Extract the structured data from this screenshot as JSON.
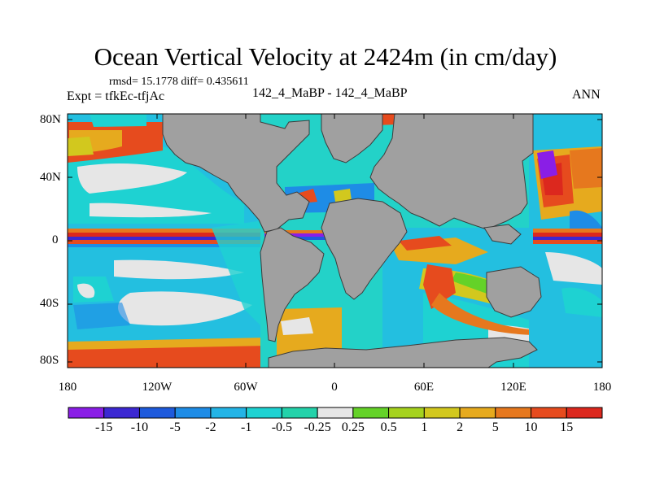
{
  "figure": {
    "title": "Ocean Vertical Velocity at 2424m (in cm/day)",
    "stats": "rmsd= 15.1778 diff= 0.435611",
    "experiment": "Expt = tfkEc-tfjAc",
    "cases": "142_4_MaBP - 142_4_MaBP",
    "season": "ANN"
  },
  "axes": {
    "lat_labels": [
      "80N",
      "40N",
      "0",
      "40S",
      "80S"
    ],
    "lon_labels": [
      "180",
      "120W",
      "60W",
      "0",
      "60E",
      "120E",
      "180"
    ]
  },
  "colorbar": {
    "labels": [
      "-15",
      "-10",
      "-5",
      "-2",
      "-1",
      "-0.5",
      "-0.25",
      "0.25",
      "0.5",
      "1",
      "2",
      "5",
      "10",
      "15"
    ],
    "colors": [
      "#8a1ee6",
      "#3c28d2",
      "#1e5adc",
      "#1e8ce6",
      "#23b4e6",
      "#1ed2d2",
      "#23d2aa",
      "#e6e6e6",
      "#64d228",
      "#a5d21e",
      "#d2c81e",
      "#e6aa1e",
      "#e6781e",
      "#e64b1e",
      "#dc281e"
    ]
  },
  "colors": {
    "land": "#a0a0a0",
    "coast": "#3c3c3c"
  }
}
